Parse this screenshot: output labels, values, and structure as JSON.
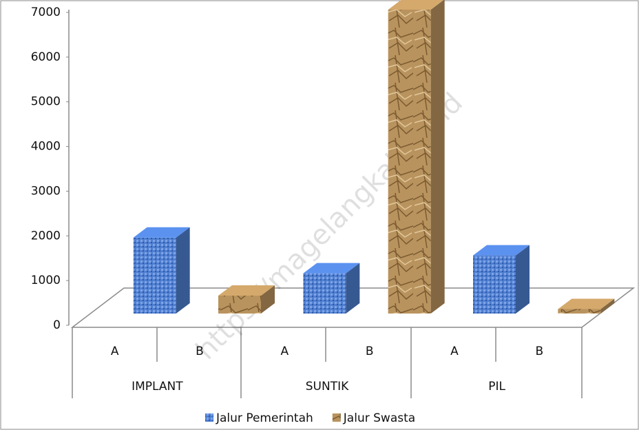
{
  "chart_data": {
    "type": "bar3d",
    "categories": [
      "A",
      "B",
      "A",
      "B",
      "A",
      "B"
    ],
    "groups": [
      "IMPLANT",
      "SUNTIK",
      "PIL"
    ],
    "series": [
      {
        "name": "Jalur Pemerintah",
        "color": "#4f7fd1",
        "values": [
          1700,
          null,
          900,
          null,
          1300,
          null
        ]
      },
      {
        "name": "Jalur Swasta",
        "color": "#b9935e",
        "values": [
          null,
          400,
          null,
          6800,
          null,
          100
        ]
      }
    ],
    "ylim": [
      0,
      7000
    ],
    "yticks": [
      0,
      1000,
      2000,
      3000,
      4000,
      5000,
      6000,
      7000
    ],
    "legend": "bottom",
    "watermark": "https://magelangkab.go.id"
  }
}
